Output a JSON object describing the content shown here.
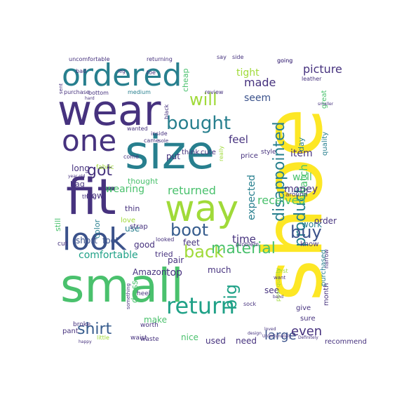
{
  "palette": {
    "dark_purple": "#46327e",
    "indigo": "#3b528b",
    "teal": "#277f8e",
    "blue_teal": "#365c8d",
    "green_teal": "#1fa187",
    "green": "#4ac16d",
    "lime": "#a0da39",
    "yellow": "#fde725",
    "deep_purple": "#440154"
  },
  "words": [
    {
      "text": "shoe",
      "color": "#fde725"
    },
    {
      "text": "small",
      "color": "#4ac16d"
    },
    {
      "text": "fit",
      "color": "#46327e"
    },
    {
      "text": "wear",
      "color": "#46327e"
    },
    {
      "text": "size",
      "color": "#277f8e"
    },
    {
      "text": "ordered",
      "color": "#277f8e"
    },
    {
      "text": "one",
      "color": "#46327e"
    },
    {
      "text": "look",
      "color": "#3b528b"
    },
    {
      "text": "way",
      "color": "#a0da39"
    },
    {
      "text": "return",
      "color": "#1fa187"
    },
    {
      "text": "bought",
      "color": "#277f8e"
    },
    {
      "text": "disappointed",
      "color": "#277f8e"
    },
    {
      "text": "product",
      "color": "#277f8e"
    },
    {
      "text": "back",
      "color": "#a0da39"
    },
    {
      "text": "boot",
      "color": "#365c8d"
    },
    {
      "text": "buy",
      "color": "#3b528b"
    },
    {
      "text": "material",
      "color": "#4ac16d"
    },
    {
      "text": "will",
      "color": "#a0da39"
    },
    {
      "text": "got",
      "color": "#46327e"
    },
    {
      "text": "shirt",
      "color": "#365c8d"
    },
    {
      "text": "big",
      "color": "#1fa187"
    },
    {
      "text": "large",
      "color": "#3b528b"
    },
    {
      "text": "even",
      "color": "#46327e"
    },
    {
      "text": "returned",
      "color": "#4ac16d"
    },
    {
      "text": "received",
      "color": "#4ac16d"
    },
    {
      "text": "made",
      "color": "#46327e"
    },
    {
      "text": "picture",
      "color": "#46327e"
    },
    {
      "text": "Watch",
      "color": "#4ac16d"
    },
    {
      "text": "time",
      "color": "#46327e"
    },
    {
      "text": "feel",
      "color": "#46327e"
    },
    {
      "text": "tight",
      "color": "#a0da39"
    },
    {
      "text": "seem",
      "color": "#3b528b"
    },
    {
      "text": "expected",
      "color": "#277f8e"
    },
    {
      "text": "item",
      "color": "#46327e"
    },
    {
      "text": "well",
      "color": "#4ac16d"
    },
    {
      "text": "money",
      "color": "#46327e"
    },
    {
      "text": "wearing",
      "color": "#4ac16d"
    },
    {
      "text": "comfortable",
      "color": "#1fa187"
    },
    {
      "text": "Amazon",
      "color": "#46327e"
    },
    {
      "text": "top",
      "color": "#46327e"
    },
    {
      "text": "pair",
      "color": "#46327e"
    },
    {
      "text": "short",
      "color": "#3b528b"
    },
    {
      "text": "foot",
      "color": "#3b528b"
    },
    {
      "text": "good",
      "color": "#46327e"
    },
    {
      "text": "feet",
      "color": "#46327e"
    },
    {
      "text": "put",
      "color": "#46327e"
    },
    {
      "text": "now",
      "color": "#46327e"
    },
    {
      "text": "use",
      "color": "#277f8e"
    },
    {
      "text": "long",
      "color": "#46327e"
    },
    {
      "text": "thought",
      "color": "#4ac16d"
    },
    {
      "text": "thin",
      "color": "#46327e"
    },
    {
      "text": "bag",
      "color": "#46327e"
    },
    {
      "text": "much",
      "color": "#46327e"
    },
    {
      "text": "tried",
      "color": "#46327e"
    },
    {
      "text": "dress",
      "color": "#4ac16d"
    },
    {
      "text": "make",
      "color": "#4ac16d"
    },
    {
      "text": "nice",
      "color": "#4ac16d"
    },
    {
      "text": "used",
      "color": "#46327e"
    },
    {
      "text": "need",
      "color": "#46327e"
    },
    {
      "text": "see",
      "color": "#46327e"
    },
    {
      "text": "work",
      "color": "#277f8e"
    },
    {
      "text": "know",
      "color": "#46327e"
    },
    {
      "text": "order",
      "color": "#46327e"
    },
    {
      "text": "day",
      "color": "#277f8e"
    },
    {
      "text": "quality",
      "color": "#277f8e"
    },
    {
      "text": "purchased",
      "color": "#277f8e"
    },
    {
      "text": "month",
      "color": "#46327e"
    },
    {
      "text": "recommend",
      "color": "#46327e"
    },
    {
      "text": "give",
      "color": "#46327e"
    },
    {
      "text": "sure",
      "color": "#46327e"
    },
    {
      "text": "still",
      "color": "#4ac16d"
    },
    {
      "text": "love",
      "color": "#a0da39"
    },
    {
      "text": "strap",
      "color": "#46327e"
    },
    {
      "text": "color",
      "color": "#277f8e"
    },
    {
      "text": "pant",
      "color": "#46327e"
    },
    {
      "text": "broke",
      "color": "#46327e"
    },
    {
      "text": "worth",
      "color": "#46327e"
    },
    {
      "text": "waist",
      "color": "#46327e"
    },
    {
      "text": "waste",
      "color": "#46327e"
    },
    {
      "text": "heel",
      "color": "#46327e"
    },
    {
      "text": "cut",
      "color": "#46327e"
    },
    {
      "text": "fabric",
      "color": "#a0da39"
    },
    {
      "text": "think",
      "color": "#46327e"
    },
    {
      "text": "cute",
      "color": "#46327e"
    },
    {
      "text": "price",
      "color": "#46327e"
    },
    {
      "text": "style",
      "color": "#46327e"
    },
    {
      "text": "great",
      "color": "#4ac16d"
    },
    {
      "text": "around",
      "color": "#46327e"
    },
    {
      "text": "going",
      "color": "#46327e"
    },
    {
      "text": "leather",
      "color": "#46327e"
    },
    {
      "text": "uncomfortable",
      "color": "#46327e"
    },
    {
      "text": "returning",
      "color": "#46327e"
    },
    {
      "text": "say",
      "color": "#46327e"
    },
    {
      "text": "side",
      "color": "#46327e"
    },
    {
      "text": "bad",
      "color": "#46327e"
    },
    {
      "text": "toe",
      "color": "#46327e"
    },
    {
      "text": "purchase",
      "color": "#46327e"
    },
    {
      "text": "bottom",
      "color": "#46327e"
    },
    {
      "text": "medium",
      "color": "#277f8e"
    },
    {
      "text": "cheap",
      "color": "#4ac16d"
    },
    {
      "text": "review",
      "color": "#46327e"
    },
    {
      "text": "wanted",
      "color": "#46327e"
    },
    {
      "text": "inside",
      "color": "#46327e"
    },
    {
      "text": "came",
      "color": "#46327e"
    },
    {
      "text": "come",
      "color": "#46327e"
    },
    {
      "text": "problem",
      "color": "#46327e"
    },
    {
      "text": "sock",
      "color": "#46327e"
    },
    {
      "text": "narrow",
      "color": "#46327e"
    },
    {
      "text": "poor quality",
      "color": "#a0da39"
    },
    {
      "text": "design",
      "color": "#46327e"
    },
    {
      "text": "something",
      "color": "#46327e"
    },
    {
      "text": "looked",
      "color": "#46327e"
    },
    {
      "text": "black",
      "color": "#46327e"
    },
    {
      "text": "smaller",
      "color": "#46327e"
    },
    {
      "text": "sent",
      "color": "#46327e"
    },
    {
      "text": "first",
      "color": "#a0da39"
    },
    {
      "text": "little",
      "color": "#a0da39"
    },
    {
      "text": "loved",
      "color": "#46327e"
    },
    {
      "text": "happy",
      "color": "#46327e"
    },
    {
      "text": "Unfortunately",
      "color": "#46327e"
    },
    {
      "text": "Definitely",
      "color": "#46327e"
    },
    {
      "text": "band",
      "color": "#46327e"
    },
    {
      "text": "year old",
      "color": "#46327e"
    },
    {
      "text": "really",
      "color": "#a0da39"
    },
    {
      "text": "want",
      "color": "#46327e"
    },
    {
      "text": "thing",
      "color": "#46327e"
    },
    {
      "text": "sole",
      "color": "#46327e"
    },
    {
      "text": "leg",
      "color": "#46327e"
    },
    {
      "text": "hard",
      "color": "#46327e"
    },
    {
      "text": "going",
      "color": "#46327e"
    }
  ]
}
